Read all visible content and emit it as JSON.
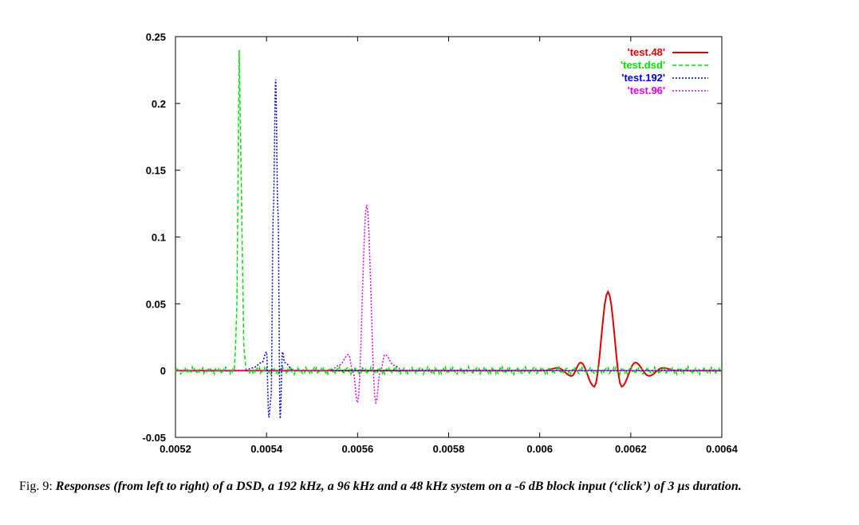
{
  "chart_data": {
    "type": "line",
    "title": "",
    "xlabel": "",
    "ylabel": "",
    "xlim": [
      0.0052,
      0.0064
    ],
    "ylim": [
      -0.05,
      0.25
    ],
    "x_ticks": [
      "0.0052",
      "0.0054",
      "0.0056",
      "0.0058",
      "0.006",
      "0.0062",
      "0.0064"
    ],
    "y_ticks": [
      "-0.05",
      "0",
      "0.05",
      "0.1",
      "0.15",
      "0.2",
      "0.25"
    ],
    "grid": false,
    "legend_position": "top-right",
    "series": [
      {
        "name": "'test.48'",
        "color": "#e00000",
        "dash": "solid",
        "x": [
          0.0052,
          0.0059,
          0.00601,
          0.00604,
          0.00607,
          0.00609,
          0.00612,
          0.00615,
          0.00618,
          0.00621,
          0.00624,
          0.00627,
          0.0063,
          0.0064
        ],
        "y": [
          0.0,
          0.0,
          0.0,
          0.002,
          -0.004,
          0.006,
          -0.012,
          0.059,
          -0.012,
          0.006,
          -0.004,
          0.002,
          0.0,
          0.0
        ]
      },
      {
        "name": "'test.dsd'",
        "color": "#00e000",
        "dash": "dashed",
        "x": [
          0.0052,
          0.00525,
          0.0053,
          0.00533,
          0.005335,
          0.00534,
          0.005345,
          0.00535,
          0.005355,
          0.00536,
          0.00538,
          0.0054,
          0.0055,
          0.0058,
          0.006,
          0.0064
        ],
        "y": [
          0.001,
          -0.002,
          0.002,
          -0.001,
          0.05,
          0.24,
          0.13,
          0.02,
          0.0,
          -0.002,
          0.001,
          -0.002,
          0.003,
          -0.003,
          0.003,
          -0.002
        ],
        "noise_amplitude": 0.003
      },
      {
        "name": "'test.192'",
        "color": "#0000d0",
        "dash": "dotted",
        "x": [
          0.0052,
          0.00535,
          0.00537,
          0.00539,
          0.0054,
          0.005405,
          0.00541,
          0.005415,
          0.00542,
          0.005425,
          0.00543,
          0.005435,
          0.00544,
          0.00546,
          0.0064
        ],
        "y": [
          0.0,
          0.0,
          0.002,
          0.006,
          0.014,
          -0.035,
          -0.02,
          0.12,
          0.218,
          0.12,
          -0.036,
          0.014,
          0.006,
          0.0,
          0.0
        ]
      },
      {
        "name": "'test.96'",
        "color": "#e000e0",
        "dash": "dotted",
        "x": [
          0.0052,
          0.00554,
          0.00556,
          0.00558,
          0.00559,
          0.0056,
          0.00562,
          0.00564,
          0.00565,
          0.00566,
          0.00568,
          0.0057,
          0.0064
        ],
        "y": [
          0.0,
          0.0,
          0.004,
          0.012,
          -0.001,
          -0.024,
          0.124,
          -0.024,
          -0.001,
          0.012,
          0.004,
          0.0,
          0.0
        ]
      }
    ]
  },
  "caption": {
    "figure_label": "Fig. 9:",
    "text": "Responses (from left to right) of a DSD, a 192 kHz, a 96 kHz and a 48 kHz system on a -6 dB block input (‘click’) of 3 µs duration."
  }
}
